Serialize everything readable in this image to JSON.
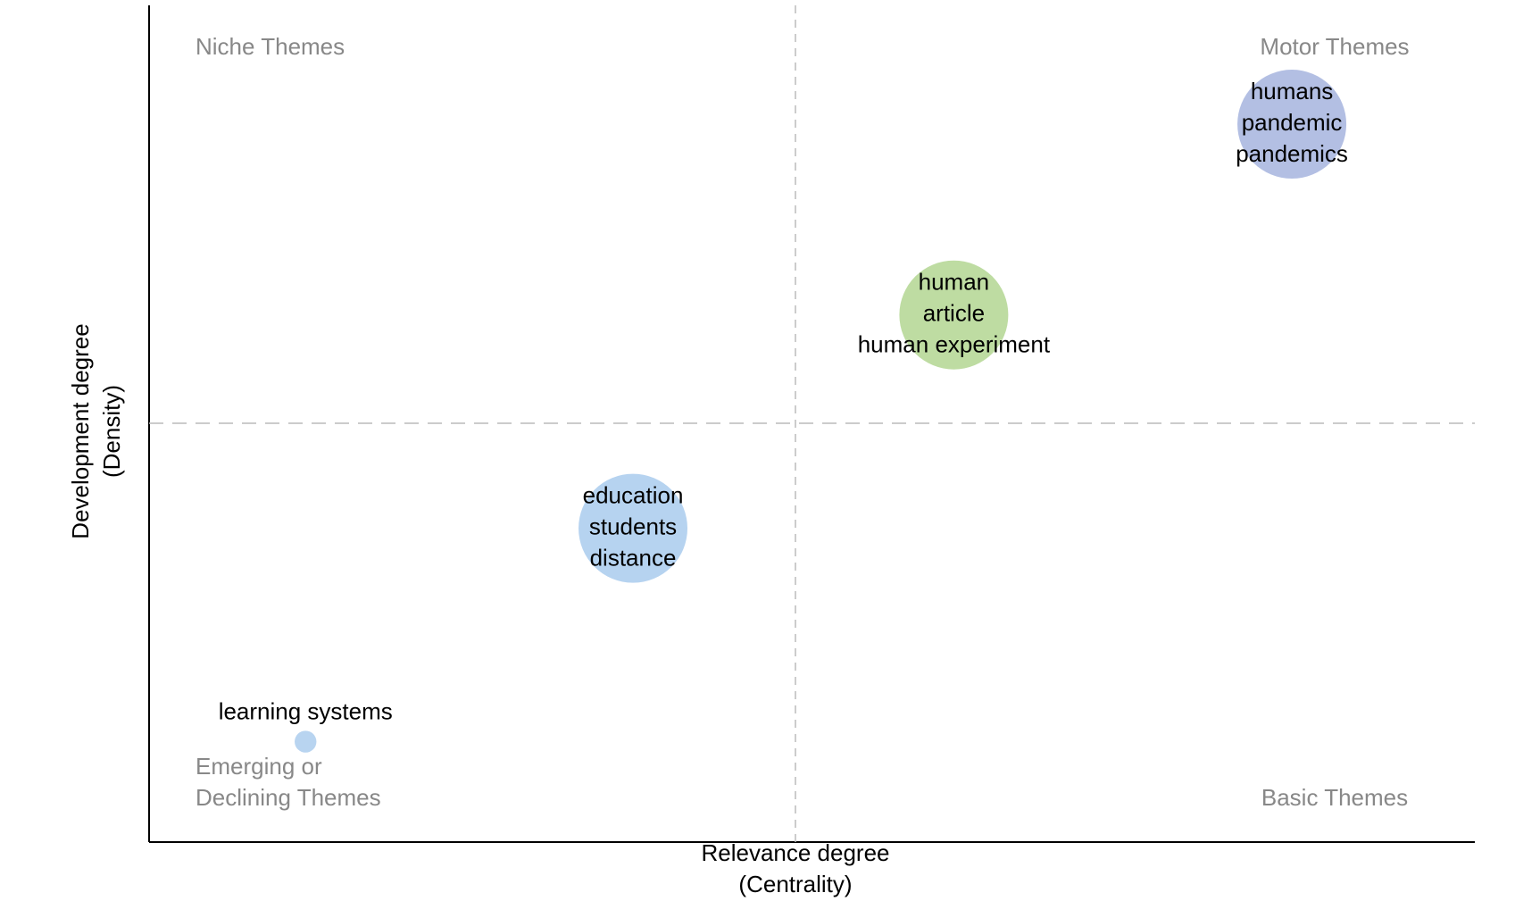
{
  "chart_data": {
    "type": "bubble",
    "xlabel": [
      "Relevance degree",
      "(Centrality)"
    ],
    "ylabel": [
      "Development degree",
      "(Density)"
    ],
    "quadrants": {
      "top_left": [
        "Niche Themes"
      ],
      "top_right": [
        "Motor Themes"
      ],
      "bottom_left": [
        "Emerging or",
        "Declining Themes"
      ],
      "bottom_right": [
        "Basic Themes"
      ]
    },
    "xlim": [
      0,
      1
    ],
    "ylim": [
      0,
      1
    ],
    "points": [
      {
        "label": [
          "learning systems"
        ],
        "x": 0.118,
        "y": 0.12,
        "size": 4,
        "color": "#b8d4f0"
      },
      {
        "label": [
          "education",
          "students",
          "distance"
        ],
        "x": 0.365,
        "y": 0.375,
        "size": 100,
        "color": "#b6d3f0"
      },
      {
        "label": [
          "human",
          "article",
          "human experiment"
        ],
        "x": 0.607,
        "y": 0.63,
        "size": 100,
        "color": "#bedca2"
      },
      {
        "label": [
          "humans",
          "pandemic",
          "pandemics"
        ],
        "x": 0.862,
        "y": 0.858,
        "size": 100,
        "color": "#b3bfe3"
      }
    ]
  }
}
